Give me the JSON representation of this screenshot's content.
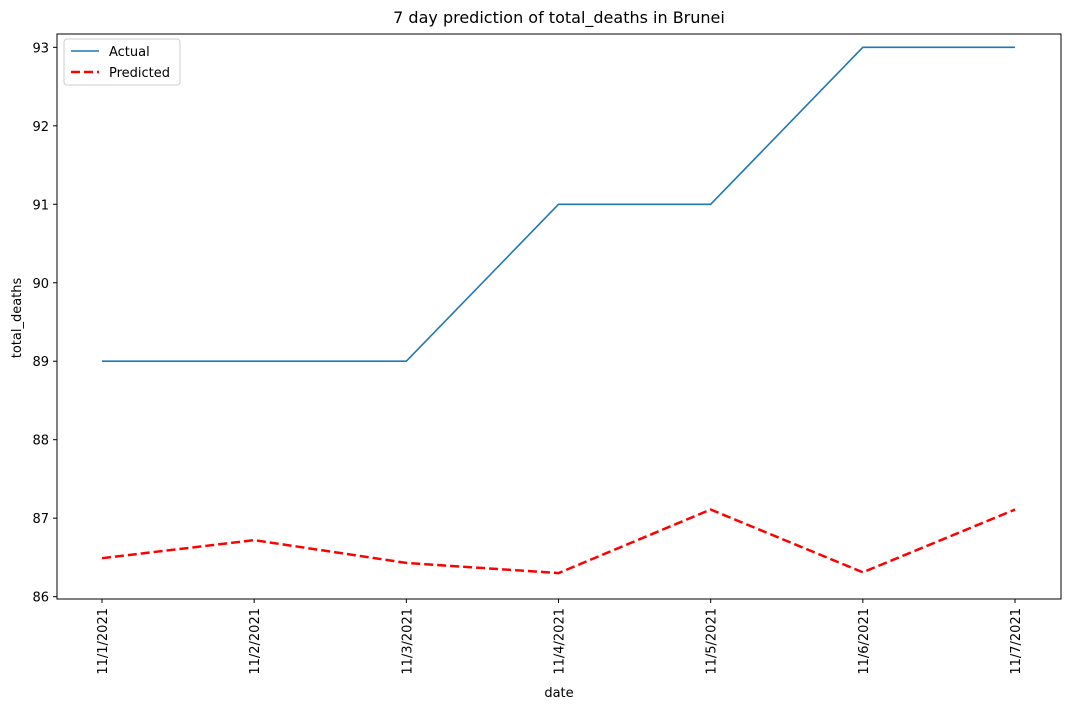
{
  "chart_data": {
    "type": "line",
    "title": "7 day prediction of total_deaths in Brunei",
    "xlabel": "date",
    "ylabel": "total_deaths",
    "categories": [
      "11/1/2021",
      "11/2/2021",
      "11/3/2021",
      "11/4/2021",
      "11/5/2021",
      "11/6/2021",
      "11/7/2021"
    ],
    "y_ticks": [
      86,
      87,
      88,
      89,
      90,
      91,
      92,
      93
    ],
    "ylim": [
      85.97,
      93.17
    ],
    "grid": false,
    "legend_position": "top-left",
    "series": [
      {
        "name": "Actual",
        "values": [
          89,
          89,
          89,
          91,
          91,
          93,
          93
        ],
        "color": "#1f77b4",
        "style": "solid"
      },
      {
        "name": "Predicted",
        "values": [
          86.49,
          86.72,
          86.43,
          86.3,
          87.11,
          86.31,
          87.11
        ],
        "color": "#ff0000",
        "style": "dashed"
      }
    ]
  }
}
